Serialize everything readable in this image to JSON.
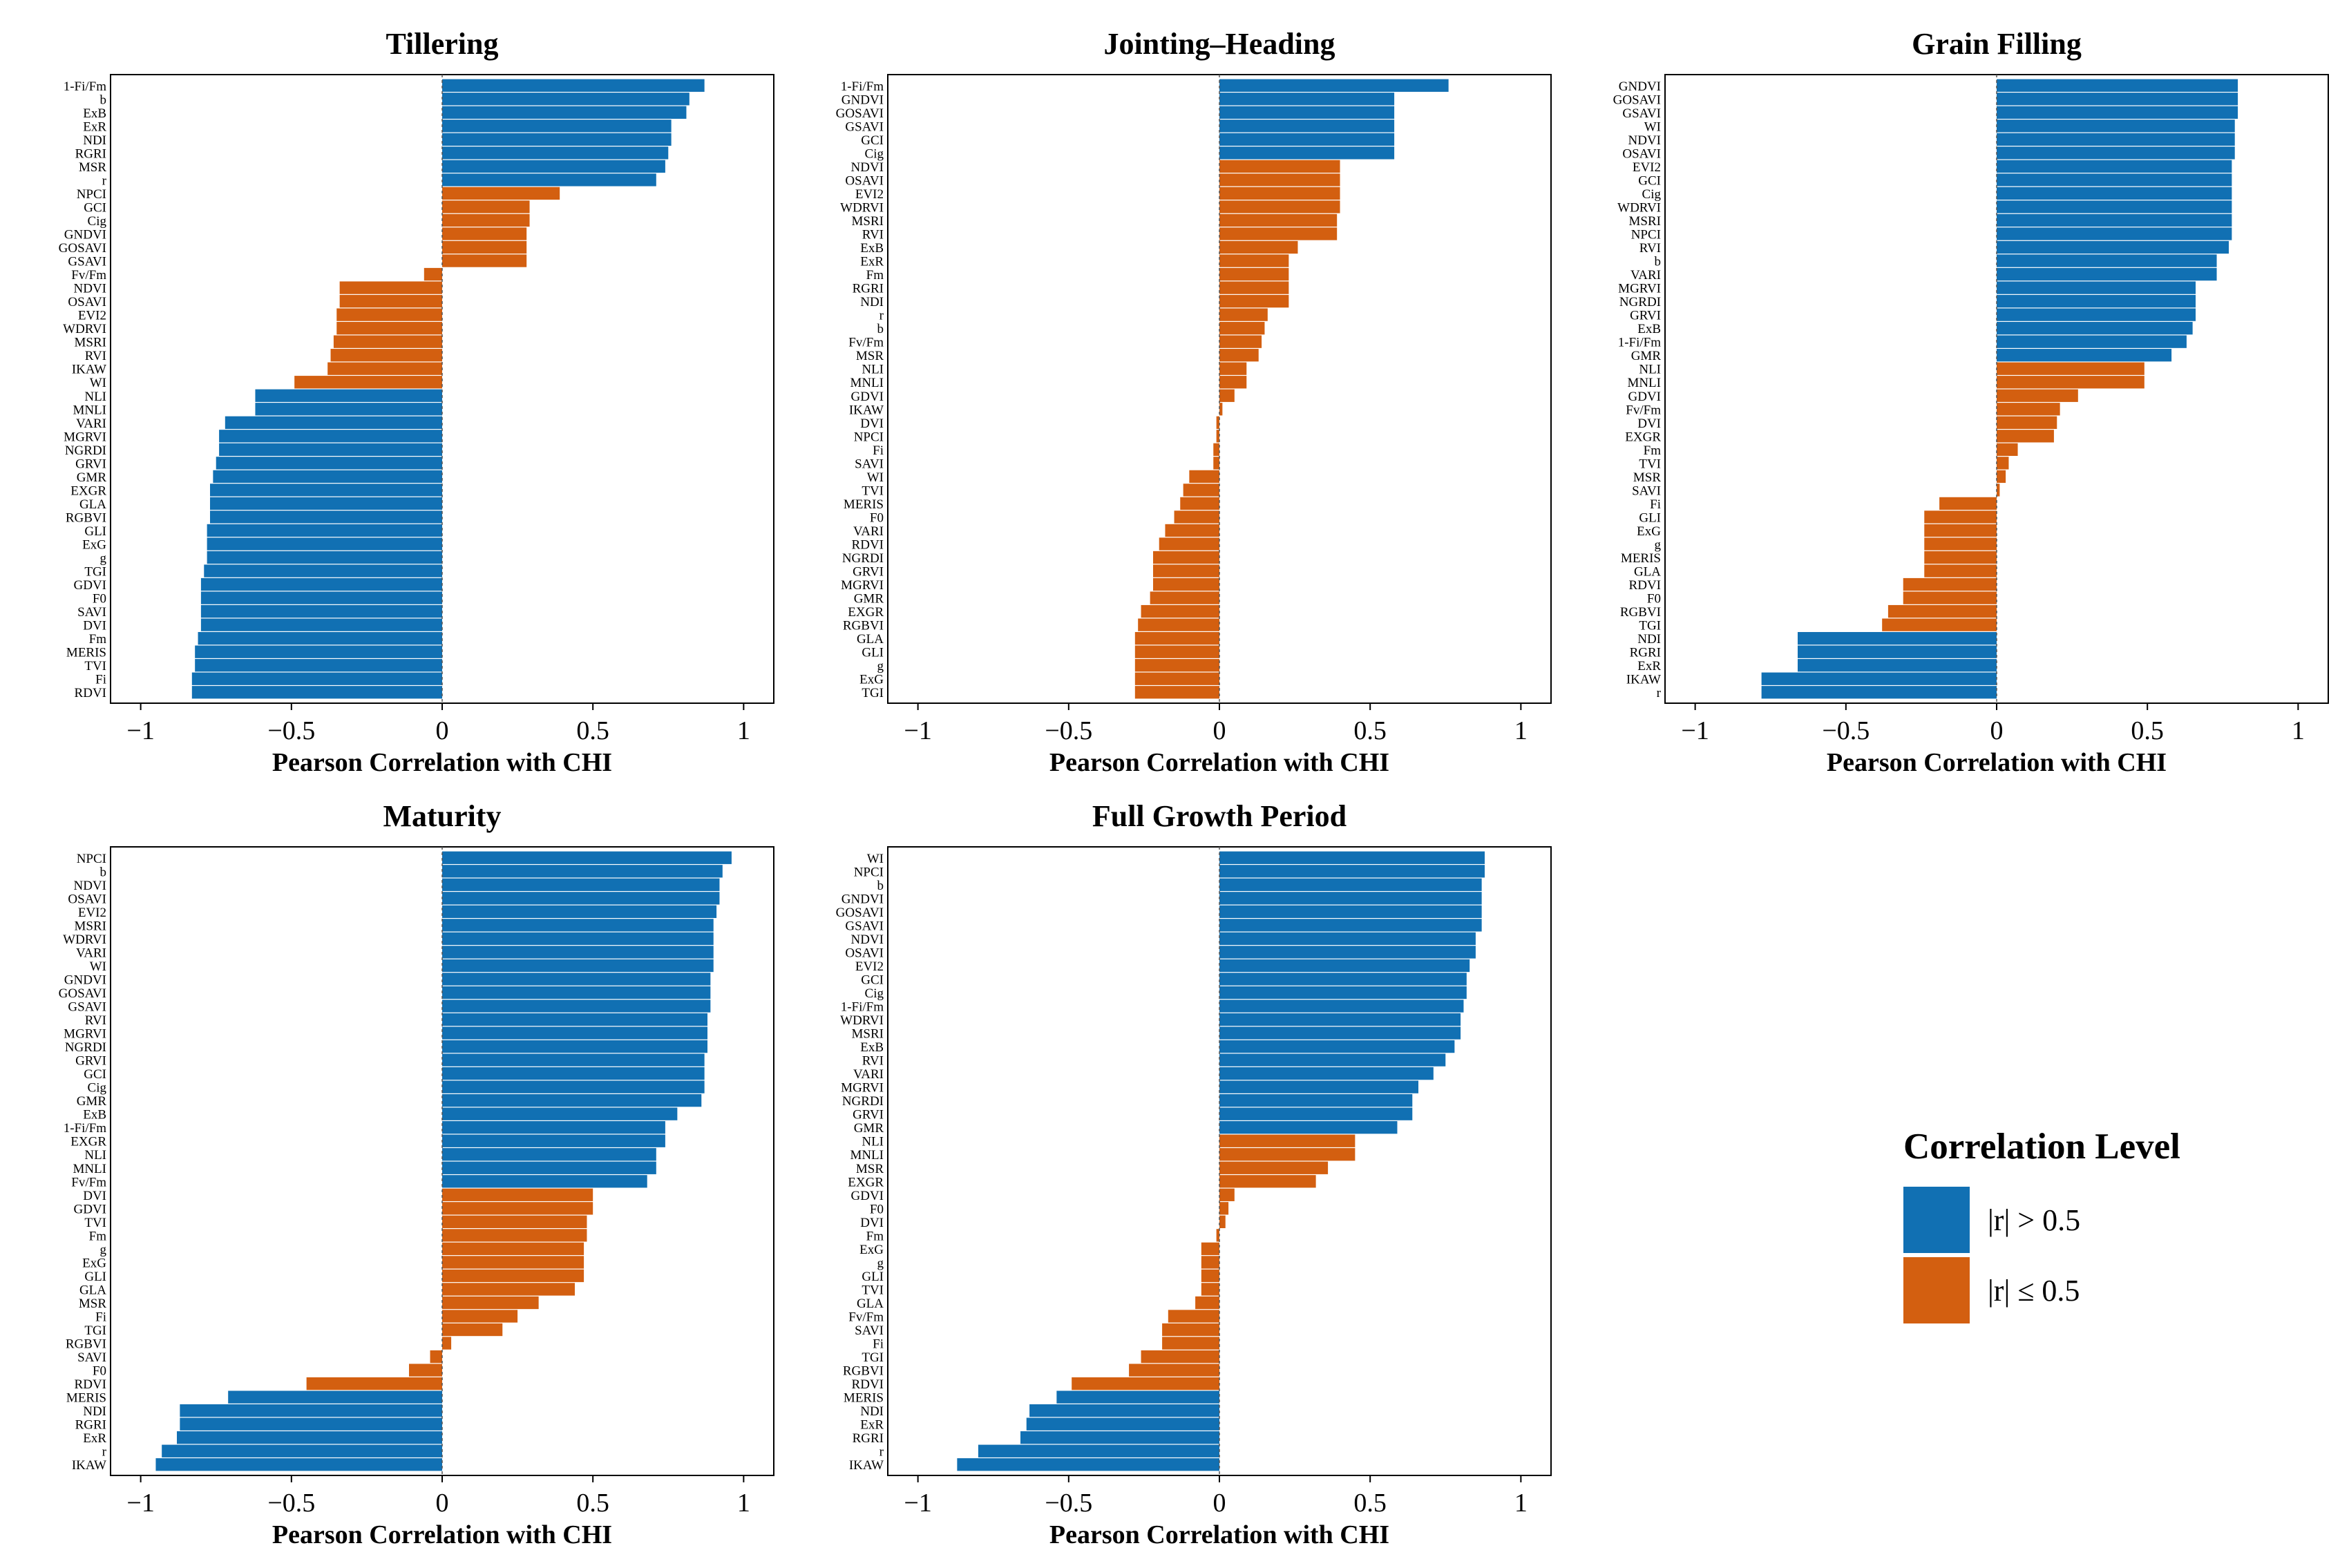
{
  "colors": {
    "high": "#1170B3",
    "low": "#D35F10"
  },
  "legend": {
    "title": "Correlation Level",
    "items": [
      {
        "label": "|r| > 0.5",
        "color": "#1170B3"
      },
      {
        "label": "|r| ≤ 0.5",
        "color": "#D35F10"
      }
    ]
  },
  "chart_data": [
    {
      "type": "bar",
      "orientation": "horizontal",
      "title": "Tillering",
      "xlabel": "Pearson Correlation with CHI",
      "xlim": [
        -1.1,
        1.1
      ],
      "xticks": [
        -1,
        -0.5,
        0,
        0.5,
        1
      ],
      "xtick_labels": [
        "−1",
        "−0.5",
        "0",
        "0.5",
        "1"
      ],
      "categories": [
        "1-Fi/Fm",
        "b",
        "ExB",
        "ExR",
        "NDI",
        "RGRI",
        "MSR",
        "r",
        "NPCI",
        "GCI",
        "Cig",
        "GNDVI",
        "GOSAVI",
        "GSAVI",
        "Fv/Fm",
        "NDVI",
        "OSAVI",
        "EVI2",
        "WDRVI",
        "MSRI",
        "RVI",
        "IKAW",
        "WI",
        "NLI",
        "MNLI",
        "VARI",
        "MGRVI",
        "NGRDI",
        "GRVI",
        "GMR",
        "EXGR",
        "GLA",
        "RGBVI",
        "GLI",
        "ExG",
        "g",
        "TGI",
        "GDVI",
        "F0",
        "SAVI",
        "DVI",
        "Fm",
        "MERIS",
        "TVI",
        "Fi",
        "RDVI"
      ],
      "values": [
        0.87,
        0.82,
        0.81,
        0.76,
        0.76,
        0.75,
        0.74,
        0.71,
        0.39,
        0.29,
        0.29,
        0.28,
        0.28,
        0.28,
        -0.06,
        -0.34,
        -0.34,
        -0.35,
        -0.35,
        -0.36,
        -0.37,
        -0.38,
        -0.49,
        -0.62,
        -0.62,
        -0.72,
        -0.74,
        -0.74,
        -0.75,
        -0.76,
        -0.77,
        -0.77,
        -0.77,
        -0.78,
        -0.78,
        -0.78,
        -0.79,
        -0.8,
        -0.8,
        -0.8,
        -0.8,
        -0.81,
        -0.82,
        -0.82,
        -0.83,
        -0.83
      ]
    },
    {
      "type": "bar",
      "orientation": "horizontal",
      "title": "Jointing–Heading",
      "xlabel": "Pearson Correlation with CHI",
      "xlim": [
        -1.1,
        1.1
      ],
      "xticks": [
        -1,
        -0.5,
        0,
        0.5,
        1
      ],
      "xtick_labels": [
        "−1",
        "−0.5",
        "0",
        "0.5",
        "1"
      ],
      "categories": [
        "1-Fi/Fm",
        "GNDVI",
        "GOSAVI",
        "GSAVI",
        "GCI",
        "Cig",
        "NDVI",
        "OSAVI",
        "EVI2",
        "WDRVI",
        "MSRI",
        "RVI",
        "ExB",
        "ExR",
        "Fm",
        "RGRI",
        "NDI",
        "r",
        "b",
        "Fv/Fm",
        "MSR",
        "NLI",
        "MNLI",
        "GDVI",
        "IKAW",
        "DVI",
        "NPCI",
        "Fi",
        "SAVI",
        "WI",
        "TVI",
        "MERIS",
        "F0",
        "VARI",
        "RDVI",
        "NGRDI",
        "GRVI",
        "MGRVI",
        "GMR",
        "EXGR",
        "RGBVI",
        "GLA",
        "GLI",
        "g",
        "ExG",
        "TGI"
      ],
      "values": [
        0.76,
        0.58,
        0.58,
        0.58,
        0.58,
        0.58,
        0.4,
        0.4,
        0.4,
        0.4,
        0.39,
        0.39,
        0.26,
        0.23,
        0.23,
        0.23,
        0.23,
        0.16,
        0.15,
        0.14,
        0.13,
        0.09,
        0.09,
        0.05,
        0.01,
        -0.01,
        -0.01,
        -0.02,
        -0.02,
        -0.1,
        -0.12,
        -0.13,
        -0.15,
        -0.18,
        -0.2,
        -0.22,
        -0.22,
        -0.22,
        -0.23,
        -0.26,
        -0.27,
        -0.28,
        -0.28,
        -0.28,
        -0.28,
        -0.28
      ]
    },
    {
      "type": "bar",
      "orientation": "horizontal",
      "title": "Grain Filling",
      "xlabel": "Pearson Correlation with CHI",
      "xlim": [
        -1.1,
        1.1
      ],
      "xticks": [
        -1,
        -0.5,
        0,
        0.5,
        1
      ],
      "xtick_labels": [
        "−1",
        "−0.5",
        "0",
        "0.5",
        "1"
      ],
      "categories": [
        "GNDVI",
        "GOSAVI",
        "GSAVI",
        "WI",
        "NDVI",
        "OSAVI",
        "EVI2",
        "GCI",
        "Cig",
        "WDRVI",
        "MSRI",
        "NPCI",
        "RVI",
        "b",
        "VARI",
        "MGRVI",
        "NGRDI",
        "GRVI",
        "ExB",
        "1-Fi/Fm",
        "GMR",
        "NLI",
        "MNLI",
        "GDVI",
        "Fv/Fm",
        "DVI",
        "EXGR",
        "Fm",
        "TVI",
        "MSR",
        "SAVI",
        "Fi",
        "GLI",
        "ExG",
        "g",
        "MERIS",
        "GLA",
        "RDVI",
        "F0",
        "RGBVI",
        "TGI",
        "NDI",
        "RGRI",
        "ExR",
        "IKAW",
        "r"
      ],
      "values": [
        0.8,
        0.8,
        0.8,
        0.79,
        0.79,
        0.79,
        0.78,
        0.78,
        0.78,
        0.78,
        0.78,
        0.78,
        0.77,
        0.73,
        0.73,
        0.66,
        0.66,
        0.66,
        0.65,
        0.63,
        0.58,
        0.49,
        0.49,
        0.27,
        0.21,
        0.2,
        0.19,
        0.07,
        0.04,
        0.03,
        0.01,
        -0.19,
        -0.24,
        -0.24,
        -0.24,
        -0.24,
        -0.24,
        -0.31,
        -0.31,
        -0.36,
        -0.38,
        -0.66,
        -0.66,
        -0.66,
        -0.78,
        -0.78
      ]
    },
    {
      "type": "bar",
      "orientation": "horizontal",
      "title": "Maturity",
      "xlabel": "Pearson Correlation with CHI",
      "xlim": [
        -1.1,
        1.1
      ],
      "xticks": [
        -1,
        -0.5,
        0,
        0.5,
        1
      ],
      "xtick_labels": [
        "−1",
        "−0.5",
        "0",
        "0.5",
        "1"
      ],
      "categories": [
        "NPCI",
        "b",
        "NDVI",
        "OSAVI",
        "EVI2",
        "MSRI",
        "WDRVI",
        "VARI",
        "WI",
        "GNDVI",
        "GOSAVI",
        "GSAVI",
        "RVI",
        "MGRVI",
        "NGRDI",
        "GRVI",
        "GCI",
        "Cig",
        "GMR",
        "ExB",
        "1-Fi/Fm",
        "EXGR",
        "NLI",
        "MNLI",
        "Fv/Fm",
        "DVI",
        "GDVI",
        "TVI",
        "Fm",
        "g",
        "ExG",
        "GLI",
        "GLA",
        "MSR",
        "Fi",
        "TGI",
        "RGBVI",
        "SAVI",
        "F0",
        "RDVI",
        "MERIS",
        "NDI",
        "RGRI",
        "ExR",
        "r",
        "IKAW"
      ],
      "values": [
        0.96,
        0.93,
        0.92,
        0.92,
        0.91,
        0.9,
        0.9,
        0.9,
        0.9,
        0.89,
        0.89,
        0.89,
        0.88,
        0.88,
        0.88,
        0.87,
        0.87,
        0.87,
        0.86,
        0.78,
        0.74,
        0.74,
        0.71,
        0.71,
        0.68,
        0.5,
        0.5,
        0.48,
        0.48,
        0.47,
        0.47,
        0.47,
        0.44,
        0.32,
        0.25,
        0.2,
        0.03,
        -0.04,
        -0.11,
        -0.45,
        -0.71,
        -0.87,
        -0.87,
        -0.88,
        -0.93,
        -0.95
      ]
    },
    {
      "type": "bar",
      "orientation": "horizontal",
      "title": "Full Growth Period",
      "xlabel": "Pearson Correlation with CHI",
      "xlim": [
        -1.1,
        1.1
      ],
      "xticks": [
        -1,
        -0.5,
        0,
        0.5,
        1
      ],
      "xtick_labels": [
        "−1",
        "−0.5",
        "0",
        "0.5",
        "1"
      ],
      "categories": [
        "WI",
        "NPCI",
        "b",
        "GNDVI",
        "GOSAVI",
        "GSAVI",
        "NDVI",
        "OSAVI",
        "EVI2",
        "GCI",
        "Cig",
        "1-Fi/Fm",
        "WDRVI",
        "MSRI",
        "ExB",
        "RVI",
        "VARI",
        "MGRVI",
        "NGRDI",
        "GRVI",
        "GMR",
        "NLI",
        "MNLI",
        "MSR",
        "EXGR",
        "GDVI",
        "F0",
        "DVI",
        "Fm",
        "ExG",
        "g",
        "GLI",
        "TVI",
        "GLA",
        "Fv/Fm",
        "SAVI",
        "Fi",
        "TGI",
        "RGBVI",
        "RDVI",
        "MERIS",
        "NDI",
        "ExR",
        "RGRI",
        "r",
        "IKAW"
      ],
      "values": [
        0.88,
        0.88,
        0.87,
        0.87,
        0.87,
        0.87,
        0.85,
        0.85,
        0.83,
        0.82,
        0.82,
        0.81,
        0.8,
        0.8,
        0.78,
        0.75,
        0.71,
        0.66,
        0.64,
        0.64,
        0.59,
        0.45,
        0.45,
        0.36,
        0.32,
        0.05,
        0.03,
        0.02,
        -0.01,
        -0.06,
        -0.06,
        -0.06,
        -0.06,
        -0.08,
        -0.17,
        -0.19,
        -0.19,
        -0.26,
        -0.3,
        -0.49,
        -0.54,
        -0.63,
        -0.64,
        -0.66,
        -0.8,
        -0.87
      ]
    }
  ]
}
